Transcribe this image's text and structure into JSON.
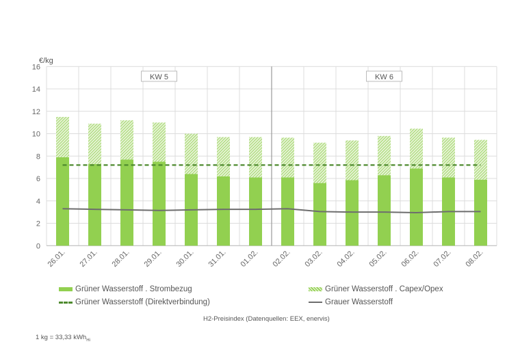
{
  "chart_data": {
    "type": "bar",
    "stacked": true,
    "ylabel": "€/kg",
    "ylim": [
      0,
      16
    ],
    "yticks": [
      0,
      2,
      4,
      6,
      8,
      10,
      12,
      14,
      16
    ],
    "grid": true,
    "categories": [
      "26.01.",
      "27.01.",
      "28.01.",
      "29.01.",
      "30.01.",
      "31.01.",
      "01.02.",
      "02.02.",
      "03.02.",
      "04.02.",
      "05.02.",
      "06.02.",
      "07.02.",
      "08.02."
    ],
    "week_labels": [
      {
        "label": "KW 5",
        "from": 0,
        "to": 6
      },
      {
        "label": "KW 6",
        "from": 7,
        "to": 13
      }
    ],
    "series": [
      {
        "name": "Grüner Wasserstoff . Strombezug",
        "kind": "bar",
        "color": "#92d050",
        "values": [
          7.9,
          7.3,
          7.7,
          7.5,
          6.4,
          6.2,
          6.1,
          6.1,
          5.6,
          5.85,
          6.3,
          6.9,
          6.1,
          5.9
        ]
      },
      {
        "name": "Grüner Wasserstoff . Capex/Opex",
        "kind": "bar-hatched",
        "color": "#92d050",
        "values": [
          3.6,
          3.6,
          3.5,
          3.5,
          3.6,
          3.5,
          3.6,
          3.55,
          3.6,
          3.55,
          3.5,
          3.55,
          3.55,
          3.55
        ]
      },
      {
        "name": "Grüner Wasserstoff (Direktverbindung)",
        "kind": "dashed-line",
        "color": "#4e8a2e",
        "values": [
          7.2,
          7.2,
          7.2,
          7.2,
          7.2,
          7.2,
          7.2,
          7.2,
          7.2,
          7.2,
          7.2,
          7.2,
          7.2,
          7.2
        ]
      },
      {
        "name": "Grauer Wasserstoff",
        "kind": "line",
        "color": "#6d6d6d",
        "values": [
          3.3,
          3.25,
          3.2,
          3.15,
          3.2,
          3.25,
          3.25,
          3.3,
          3.05,
          3.0,
          3.0,
          2.95,
          3.05,
          3.05
        ]
      }
    ],
    "legend_placement": "bottom"
  },
  "caption": "H2-Preisindex (Datenquellen: EEX, enervis)",
  "note_main": "1 kg = 33,33 kWh",
  "note_sub": "Hi"
}
